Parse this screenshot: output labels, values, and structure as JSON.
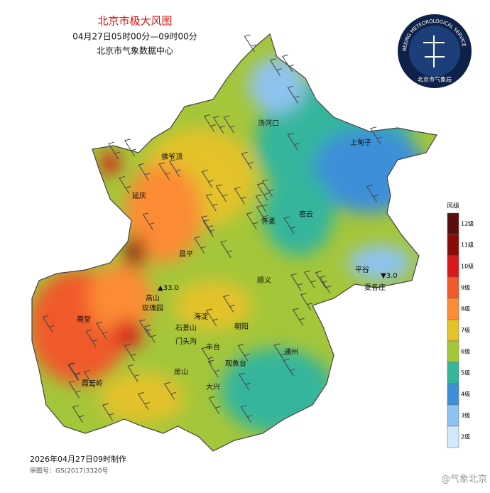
{
  "header": {
    "title": "北京市极大风图",
    "time_range": "04月27日05时00分—09时00分",
    "source": "北京市气象数据中心"
  },
  "logo": {
    "ring_text": "BEIJING METEOROLOGICAL SERVICE",
    "name": "北京市气象局"
  },
  "places": [
    {
      "name": "汤河口"
    },
    {
      "name": "上甸子"
    },
    {
      "name": "佛爷顶"
    },
    {
      "name": "延庆"
    },
    {
      "name": "密云"
    },
    {
      "name": "怀柔"
    },
    {
      "name": "昌平"
    },
    {
      "name": "平谷"
    },
    {
      "name": "顺义"
    },
    {
      "name": "高山"
    },
    {
      "name": "玫瑰园"
    },
    {
      "name": "海淀"
    },
    {
      "name": "石景山"
    },
    {
      "name": "朝阳"
    },
    {
      "name": "门头沟"
    },
    {
      "name": "丰台"
    },
    {
      "name": "斋堂"
    },
    {
      "name": "霞云岭"
    },
    {
      "name": "房山"
    },
    {
      "name": "观象台"
    },
    {
      "name": "大兴"
    },
    {
      "name": "通州"
    },
    {
      "name": "夏各庄"
    }
  ],
  "extremes": [
    {
      "symbol": "▲",
      "value": "33.0"
    },
    {
      "symbol": "▼",
      "value": "3.0"
    }
  ],
  "legend": {
    "title": "风级",
    "items": [
      {
        "label": "12级",
        "color": "#5a0f0f"
      },
      {
        "label": "11级",
        "color": "#8b0a0a"
      },
      {
        "label": "10级",
        "color": "#d7191c"
      },
      {
        "label": "9级",
        "color": "#f05a2a"
      },
      {
        "label": "8级",
        "color": "#fb8c34"
      },
      {
        "label": "7级",
        "color": "#e3c22a"
      },
      {
        "label": "6级",
        "color": "#a4c63a"
      },
      {
        "label": "5级",
        "color": "#34b59c"
      },
      {
        "label": "4级",
        "color": "#3d8fd8"
      },
      {
        "label": "3级",
        "color": "#8ec3ef"
      },
      {
        "label": "2级",
        "color": "#d2e9fb"
      }
    ]
  },
  "footer": {
    "made": "2026年04月27日09时制作",
    "approval": "审图号：GS(2017)3320号",
    "watermark": "@气象北京"
  }
}
